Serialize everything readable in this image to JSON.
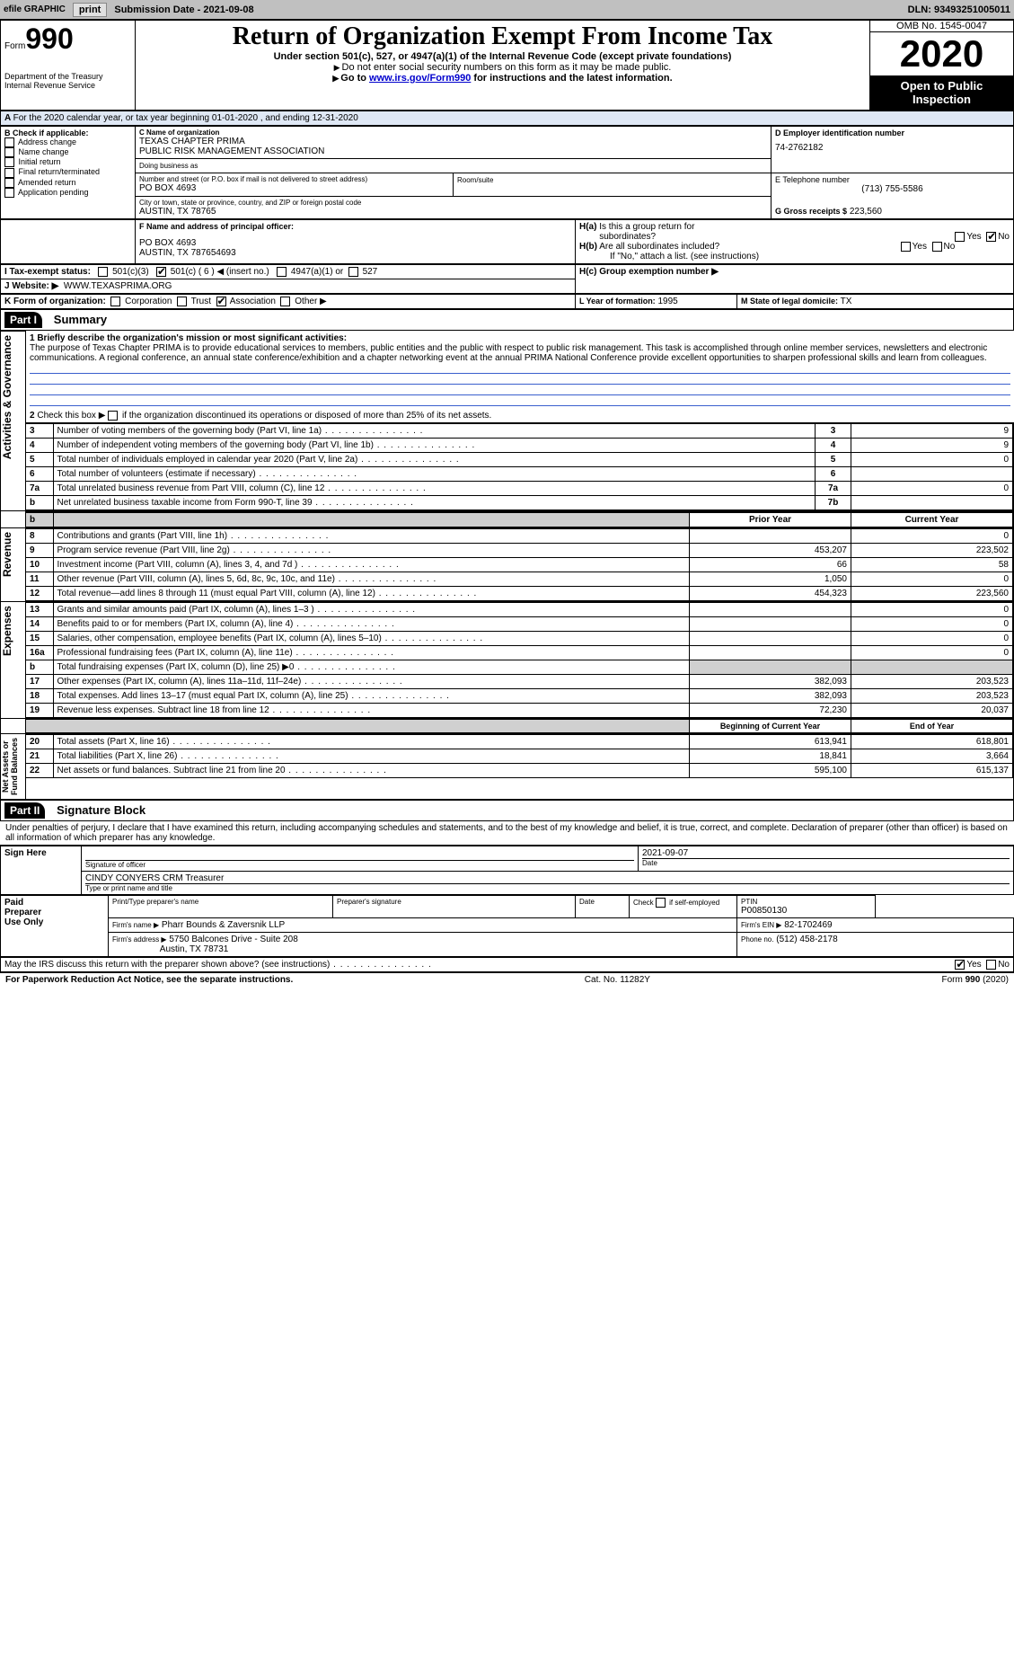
{
  "topbar": {
    "efile": "efile GRAPHIC",
    "print": "print",
    "submission": "Submission Date - 2021-09-08",
    "dln": "DLN: 93493251005011"
  },
  "header": {
    "form_label": "Form",
    "form_number": "990",
    "title": "Return of Organization Exempt From Income Tax",
    "subtitle": "Under section 501(c), 527, or 4947(a)(1) of the Internal Revenue Code (except private foundations)",
    "note1": "Do not enter social security numbers on this form as it may be made public.",
    "note2_prefix": "Go to ",
    "note2_link": "www.irs.gov/Form990",
    "note2_suffix": " for instructions and the latest information.",
    "dept": "Department of the Treasury\nInternal Revenue Service",
    "omb": "OMB No. 1545-0047",
    "year": "2020",
    "open": "Open to Public Inspection"
  },
  "lineA": "For the 2020 calendar year, or tax year beginning 01-01-2020    , and ending 12-31-2020",
  "boxB": {
    "title": "B Check if applicable:",
    "items": [
      "Address change",
      "Name change",
      "Initial return",
      "Final return/terminated",
      "Amended return",
      "Application pending"
    ]
  },
  "boxC": {
    "label": "C Name of organization",
    "name1": "TEXAS CHAPTER PRIMA",
    "name2": "PUBLIC RISK MANAGEMENT ASSOCIATION",
    "dba_label": "Doing business as",
    "street_label": "Number and street (or P.O. box if mail is not delivered to street address)",
    "room_label": "Room/suite",
    "street": "PO BOX 4693",
    "city_label": "City or town, state or province, country, and ZIP or foreign postal code",
    "city": "AUSTIN, TX  78765"
  },
  "boxD": {
    "label": "D Employer identification number",
    "value": "74-2762182"
  },
  "boxE": {
    "label": "E Telephone number",
    "value": "(713) 755-5586"
  },
  "boxG": {
    "label": "G Gross receipts $",
    "value": "223,560"
  },
  "boxF": {
    "label": "F Name and address of principal officer:",
    "line1": "PO BOX 4693",
    "line2": "AUSTIN, TX  787654693"
  },
  "boxH": {
    "a_label": "H(a)  Is this a group return for subordinates?",
    "b_label": "H(b)  Are all subordinates included?",
    "b_note": "If \"No,\" attach a list. (see instructions)",
    "c_label": "H(c)  Group exemption number ▶",
    "yes": "Yes",
    "no": "No"
  },
  "boxI": {
    "label": "I     Tax-exempt status:",
    "opts": [
      "501(c)(3)",
      "501(c) ( 6 ) ◀ (insert no.)",
      "4947(a)(1) or",
      "527"
    ]
  },
  "boxJ": {
    "label": "J    Website: ▶",
    "value": "WWW.TEXASPRIMA.ORG"
  },
  "boxK": {
    "label": "K Form of organization:",
    "opts": [
      "Corporation",
      "Trust",
      "Association",
      "Other ▶"
    ]
  },
  "boxL": {
    "label": "L Year of formation:",
    "value": "1995"
  },
  "boxM": {
    "label": "M State of legal domicile:",
    "value": "TX"
  },
  "partI": {
    "label": "Part I",
    "title": "Summary"
  },
  "summary": {
    "q1_label": "1   Briefly describe the organization's mission or most significant activities:",
    "q1_text": "The purpose of Texas Chapter PRIMA is to provide educational services to members, public entities and the public with respect to public risk management. This task is accomplished through online member services, newsletters and electronic communications. A regional conference, an annual state conference/exhibition and a chapter networking event at the annual PRIMA National Conference provide excellent opportunities to sharpen professional skills and learn from colleagues.",
    "q2": "2   Check this box ▶  if the organization discontinued its operations or disposed of more than 25% of its net assets.",
    "rows": [
      {
        "n": "3",
        "t": "Number of voting members of the governing body (Part VI, line 1a)",
        "box": "3",
        "v": "9"
      },
      {
        "n": "4",
        "t": "Number of independent voting members of the governing body (Part VI, line 1b)",
        "box": "4",
        "v": "9"
      },
      {
        "n": "5",
        "t": "Total number of individuals employed in calendar year 2020 (Part V, line 2a)",
        "box": "5",
        "v": "0"
      },
      {
        "n": "6",
        "t": "Total number of volunteers (estimate if necessary)",
        "box": "6",
        "v": ""
      },
      {
        "n": "7a",
        "t": "Total unrelated business revenue from Part VIII, column (C), line 12",
        "box": "7a",
        "v": "0"
      },
      {
        "n": "b",
        "t": "Net unrelated business taxable income from Form 990-T, line 39",
        "box": "7b",
        "v": ""
      }
    ]
  },
  "cols": {
    "prior": "Prior Year",
    "current": "Current Year",
    "begin": "Beginning of Current Year",
    "end": "End of Year"
  },
  "revenue": [
    {
      "n": "8",
      "t": "Contributions and grants (Part VIII, line 1h)",
      "p": "",
      "c": "0"
    },
    {
      "n": "9",
      "t": "Program service revenue (Part VIII, line 2g)",
      "p": "453,207",
      "c": "223,502"
    },
    {
      "n": "10",
      "t": "Investment income (Part VIII, column (A), lines 3, 4, and 7d )",
      "p": "66",
      "c": "58"
    },
    {
      "n": "11",
      "t": "Other revenue (Part VIII, column (A), lines 5, 6d, 8c, 9c, 10c, and 11e)",
      "p": "1,050",
      "c": "0"
    },
    {
      "n": "12",
      "t": "Total revenue—add lines 8 through 11 (must equal Part VIII, column (A), line 12)",
      "p": "454,323",
      "c": "223,560"
    }
  ],
  "expenses": [
    {
      "n": "13",
      "t": "Grants and similar amounts paid (Part IX, column (A), lines 1–3 )",
      "p": "",
      "c": "0"
    },
    {
      "n": "14",
      "t": "Benefits paid to or for members (Part IX, column (A), line 4)",
      "p": "",
      "c": "0"
    },
    {
      "n": "15",
      "t": "Salaries, other compensation, employee benefits (Part IX, column (A), lines 5–10)",
      "p": "",
      "c": "0"
    },
    {
      "n": "16a",
      "t": "Professional fundraising fees (Part IX, column (A), line 11e)",
      "p": "",
      "c": "0"
    },
    {
      "n": "b",
      "t": "Total fundraising expenses (Part IX, column (D), line 25) ▶0",
      "p": "",
      "c": "",
      "grey": true
    },
    {
      "n": "17",
      "t": "Other expenses (Part IX, column (A), lines 11a–11d, 11f–24e)",
      "p": "382,093",
      "c": "203,523"
    },
    {
      "n": "18",
      "t": "Total expenses. Add lines 13–17 (must equal Part IX, column (A), line 25)",
      "p": "382,093",
      "c": "203,523"
    },
    {
      "n": "19",
      "t": "Revenue less expenses. Subtract line 18 from line 12",
      "p": "72,230",
      "c": "20,037"
    }
  ],
  "netassets": [
    {
      "n": "20",
      "t": "Total assets (Part X, line 16)",
      "p": "613,941",
      "c": "618,801"
    },
    {
      "n": "21",
      "t": "Total liabilities (Part X, line 26)",
      "p": "18,841",
      "c": "3,664"
    },
    {
      "n": "22",
      "t": "Net assets or fund balances. Subtract line 21 from line 20",
      "p": "595,100",
      "c": "615,137"
    }
  ],
  "vlabels": {
    "gov": "Activities & Governance",
    "rev": "Revenue",
    "exp": "Expenses",
    "net": "Net Assets or\nFund Balances"
  },
  "partII": {
    "label": "Part II",
    "title": "Signature Block"
  },
  "sig": {
    "declaration": "Under penalties of perjury, I declare that I have examined this return, including accompanying schedules and statements, and to the best of my knowledge and belief, it is true, correct, and complete. Declaration of preparer (other than officer) is based on all information of which preparer has any knowledge.",
    "sign_here": "Sign Here",
    "sig_officer": "Signature of officer",
    "date_val": "2021-09-07",
    "date": "Date",
    "name_title": "CINDY CONYERS CRM Treasurer",
    "name_label": "Type or print name and title",
    "paid": "Paid Preparer Use Only",
    "preparer_name_label": "Print/Type preparer's name",
    "preparer_sig_label": "Preparer's signature",
    "date_label": "Date",
    "check_self": "Check  if self-employed",
    "ptin_label": "PTIN",
    "ptin": "P00850130",
    "firm_name_label": "Firm's name   ▶",
    "firm_name": "Pharr Bounds & Zaversnik LLP",
    "firm_ein_label": "Firm's EIN ▶",
    "firm_ein": "82-1702469",
    "firm_addr_label": "Firm's address ▶",
    "firm_addr1": "5750 Balcones Drive - Suite 208",
    "firm_addr2": "Austin, TX  78731",
    "phone_label": "Phone no.",
    "phone": "(512) 458-2178",
    "discuss": "May the IRS discuss this return with the preparer shown above? (see instructions)"
  },
  "footer": {
    "left": "For Paperwork Reduction Act Notice, see the separate instructions.",
    "mid": "Cat. No. 11282Y",
    "right": "Form 990 (2020)"
  }
}
